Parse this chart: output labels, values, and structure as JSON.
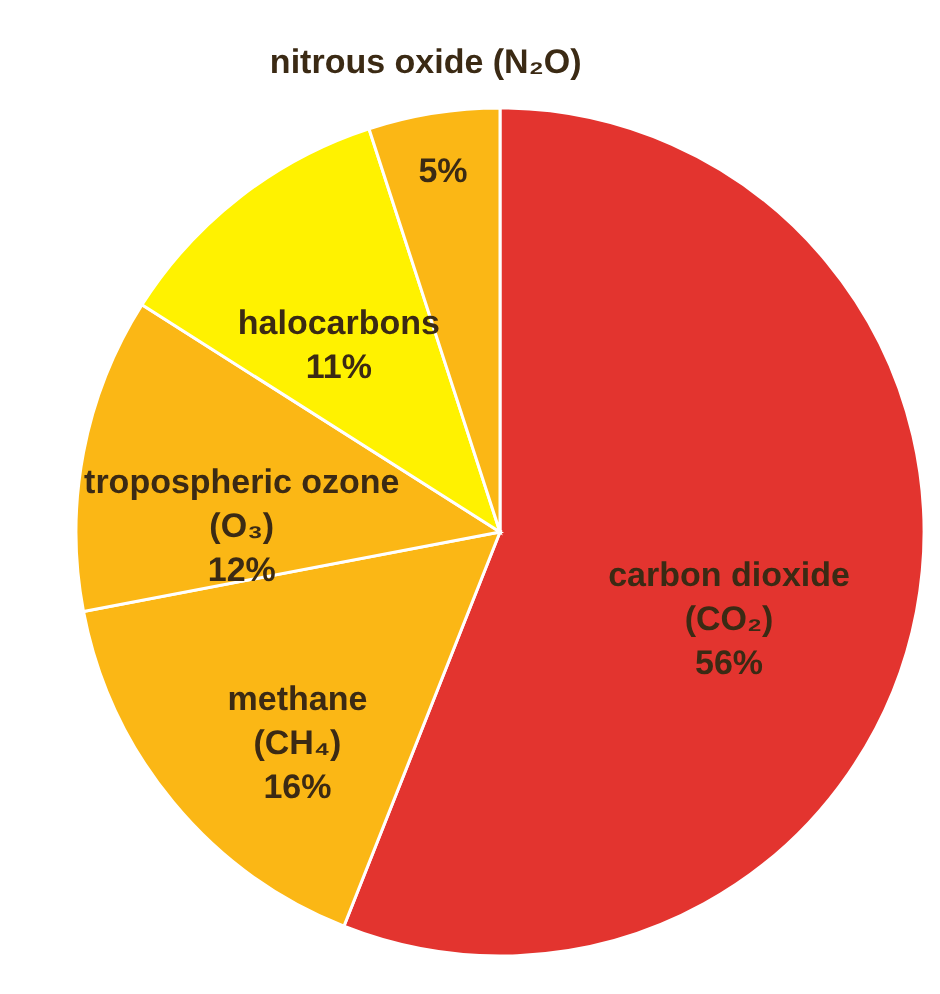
{
  "chart_data": {
    "type": "pie",
    "categories": [
      "carbon dioxide (CO₂)",
      "methane (CH₄)",
      "tropospheric ozone (O₃)",
      "halocarbons",
      "nitrous oxide (N₂O)"
    ],
    "values": [
      56,
      16,
      12,
      11,
      5
    ],
    "value_labels": [
      "56%",
      "16%",
      "12%",
      "11%",
      "5%"
    ],
    "colors": [
      "#e3342f",
      "#fbb715",
      "#fbb715",
      "#fff200",
      "#fbb715"
    ]
  }
}
